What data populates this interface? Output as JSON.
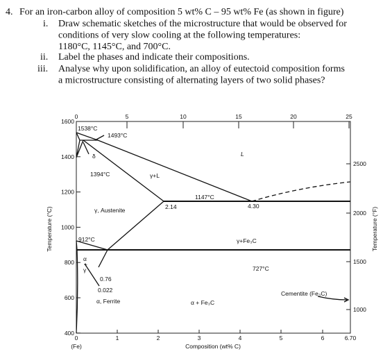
{
  "question": {
    "number": "4.",
    "text": "For an iron-carbon alloy of composition 5 wt% C – 95 wt% Fe (as shown in figure)",
    "items": [
      {
        "marker": "i.",
        "lines": [
          "Draw schematic sketches of the microstructure that would be observed for",
          "conditions of very slow cooling at the following temperatures:",
          "1180°C, 1145°C, and 700°C."
        ]
      },
      {
        "marker": "ii.",
        "lines": [
          "Label the phases and indicate their compositions."
        ]
      },
      {
        "marker": "iii.",
        "lines": [
          "Analyse why upon solidification, an alloy of eutectoid composition forms",
          "a microstructure consisting of alternating layers of two solid phases?"
        ]
      }
    ]
  },
  "figure": {
    "y_axis_label": "Temperature (°C)",
    "y2_axis_label": "Temperature (°F)",
    "x_axis_label": "Composition (wt% C)",
    "x_ticks": [
      "0",
      "1",
      "2",
      "3",
      "4",
      "5",
      "6",
      "6.70"
    ],
    "top_ticks": [
      "0",
      "5",
      "10",
      "15",
      "20",
      "25"
    ],
    "y_ticks": [
      "1600",
      "1400",
      "1200",
      "1000",
      "800",
      "600",
      "400"
    ],
    "y2_ticks": [
      "2500",
      "2000",
      "1500",
      "1000"
    ],
    "fe_label": "(Fe)",
    "labels": [
      "1538°C",
      "1493°C",
      "δ",
      "1394°C",
      "γ+L",
      "L",
      "1147°C",
      "2.14",
      "4.30",
      "γ, Austenite",
      "912°C",
      "γ+Fe₃C",
      "727°C",
      "α",
      "+",
      "γ",
      "0.76",
      "0.022",
      "α, Ferrite",
      "α + Fe₃C",
      "Cementite (Fe₃C)"
    ]
  }
}
